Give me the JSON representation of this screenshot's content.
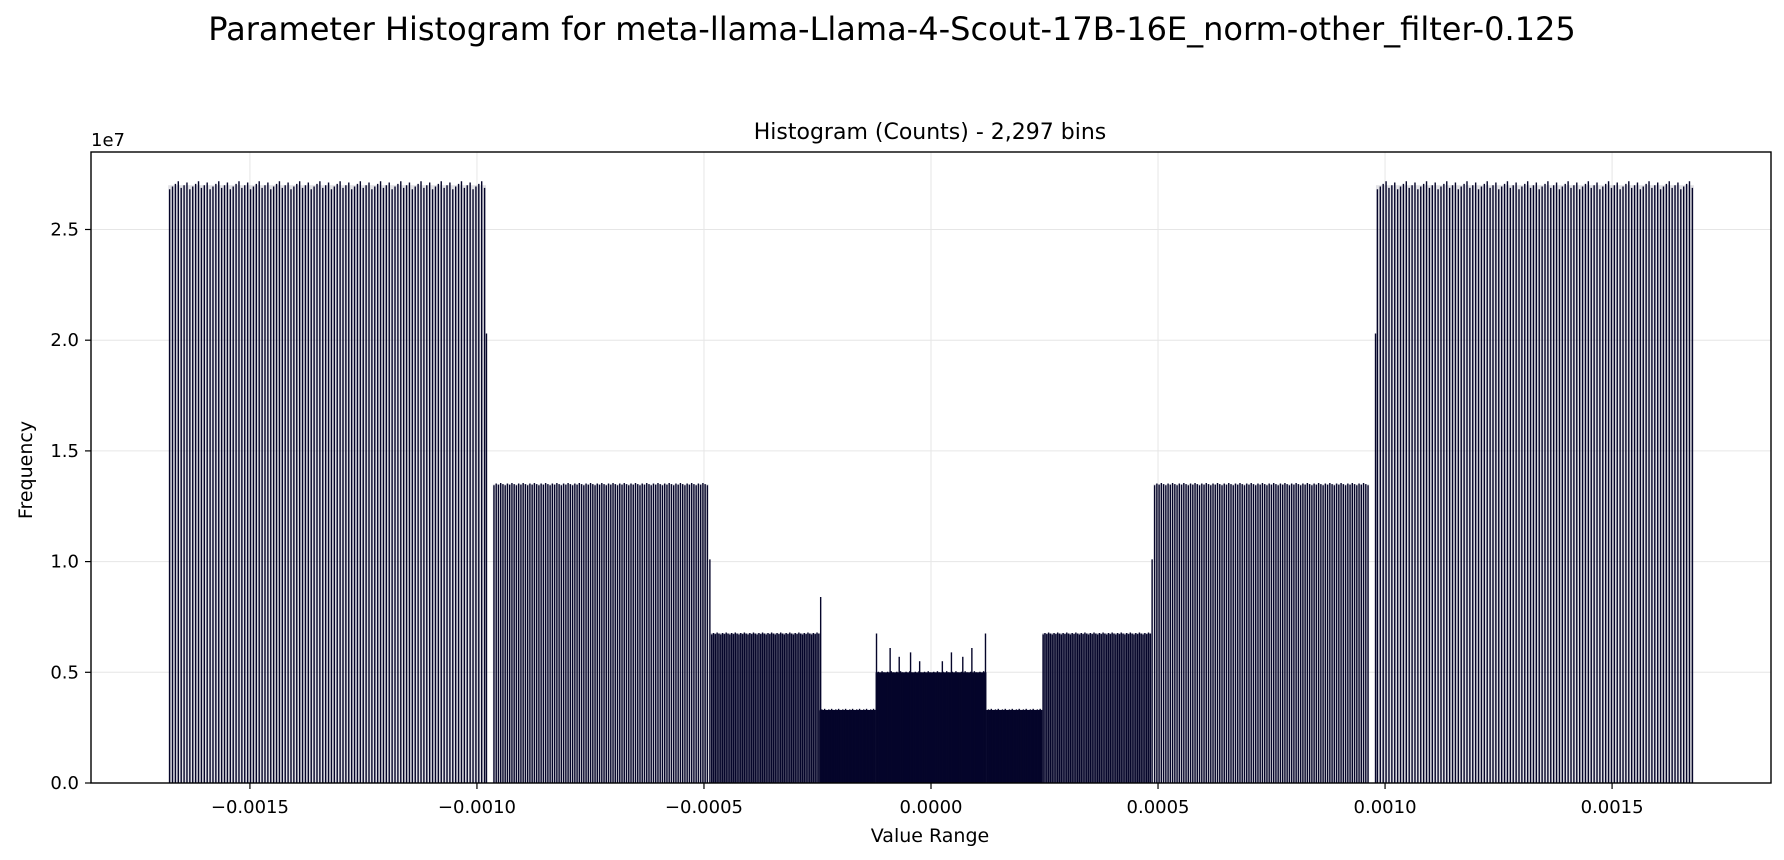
{
  "chart_data": {
    "type": "bar",
    "suptitle": "Parameter Histogram for meta-llama-Llama-4-Scout-17B-16E_norm-other_filter-0.125",
    "title": "Histogram (Counts) - 2,297 bins",
    "xlabel": "Value Range",
    "ylabel": "Frequency",
    "y_offset_text": "1e7",
    "xlim": [
      -0.00185,
      0.00185
    ],
    "ylim": [
      0,
      28500000
    ],
    "grid": true,
    "bar_color": "#05052a",
    "x_ticks": [
      {
        "value": -0.0015,
        "label": "−0.0015"
      },
      {
        "value": -0.001,
        "label": "−0.0010"
      },
      {
        "value": -0.0005,
        "label": "−0.0005"
      },
      {
        "value": 0.0,
        "label": "0.0000"
      },
      {
        "value": 0.0005,
        "label": "0.0005"
      },
      {
        "value": 0.001,
        "label": "0.0010"
      },
      {
        "value": 0.0015,
        "label": "0.0015"
      }
    ],
    "y_ticks": [
      {
        "value": 0,
        "label": "0.0"
      },
      {
        "value": 5000000,
        "label": "0.5"
      },
      {
        "value": 10000000,
        "label": "1.0"
      },
      {
        "value": 15000000,
        "label": "1.5"
      },
      {
        "value": 20000000,
        "label": "2.0"
      },
      {
        "value": 25000000,
        "label": "2.5"
      }
    ],
    "segments": [
      {
        "x_start": -0.00168,
        "x_end": -0.00098,
        "value": 27000000,
        "count": 110
      },
      {
        "x_start": -0.000965,
        "x_end": -0.00049,
        "value": 13500000,
        "count": 96
      },
      {
        "x_start": -0.000485,
        "x_end": -0.000245,
        "value": 6750000,
        "count": 60
      },
      {
        "x_start": -0.000245,
        "x_end": -0.000122,
        "value": 3300000,
        "count": 40
      },
      {
        "x_start": -0.000122,
        "x_end": 0.000122,
        "value": 5000000,
        "count": 60
      },
      {
        "x_start": 0.000122,
        "x_end": 0.000245,
        "value": 3300000,
        "count": 40
      },
      {
        "x_start": 0.000245,
        "x_end": 0.000485,
        "value": 6750000,
        "count": 60
      },
      {
        "x_start": 0.00049,
        "x_end": 0.000965,
        "value": 13500000,
        "count": 96
      },
      {
        "x_start": 0.00098,
        "x_end": 0.00168,
        "value": 27000000,
        "count": 110
      }
    ],
    "spikes": [
      {
        "x": -0.000979,
        "value": 20300000
      },
      {
        "x": -0.000487,
        "value": 10100000
      },
      {
        "x": -0.000243,
        "value": 8400000
      },
      {
        "x": -0.00012,
        "value": 6750000
      },
      {
        "x": -9e-05,
        "value": 6100000
      },
      {
        "x": -7e-05,
        "value": 5700000
      },
      {
        "x": -4.5e-05,
        "value": 5900000
      },
      {
        "x": -2.5e-05,
        "value": 5500000
      },
      {
        "x": 2.5e-05,
        "value": 5500000
      },
      {
        "x": 4.5e-05,
        "value": 5900000
      },
      {
        "x": 7e-05,
        "value": 5700000
      },
      {
        "x": 9e-05,
        "value": 6100000
      },
      {
        "x": 0.00012,
        "value": 6750000
      },
      {
        "x": 0.000487,
        "value": 10100000
      },
      {
        "x": 0.000979,
        "value": 20300000
      }
    ]
  }
}
